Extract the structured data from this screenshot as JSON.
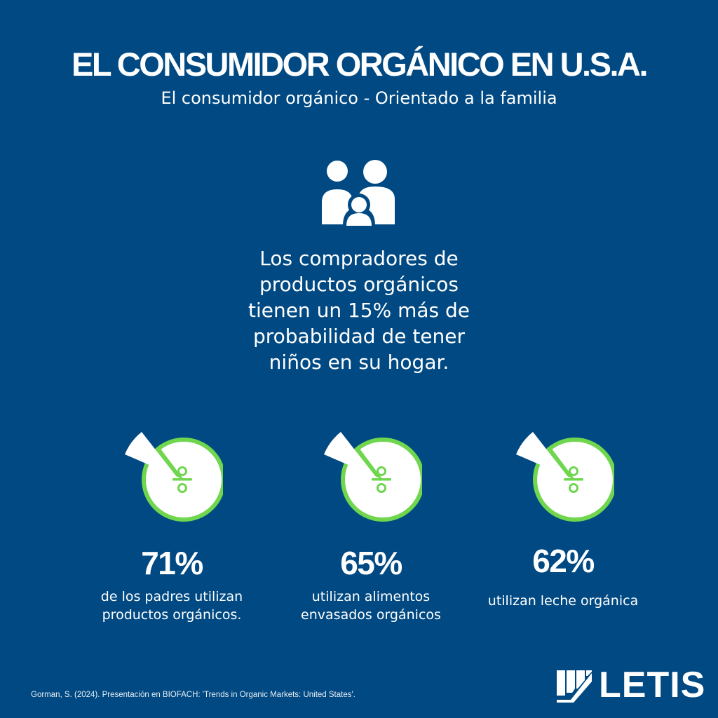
{
  "header": {
    "title": "EL CONSUMIDOR ORGÁNICO EN U.S.A.",
    "subtitle": "El consumidor orgánico - Orientado a la familia"
  },
  "main": {
    "icon": "family-icon",
    "statement_lines": [
      "Los compradores de",
      "productos orgánicos",
      "tienen un 15% más de",
      "probabilidad de tener",
      "niños en su hogar."
    ]
  },
  "stats": [
    {
      "icon": "percentage-pie-icon",
      "value": "71%",
      "description_lines": [
        "de los padres utilizan",
        "productos orgánicos."
      ]
    },
    {
      "icon": "percentage-pie-icon",
      "value": "65%",
      "description_lines": [
        "utilizan alimentos",
        "envasados orgánicos"
      ]
    },
    {
      "icon": "percentage-pie-icon",
      "value": "62%",
      "description_lines": [
        "utilizan leche orgánica"
      ]
    }
  ],
  "footer": {
    "source": "Gorman, S. (2024). Presentación en BIOFACH: 'Trends in Organic Markets: United States'.",
    "logo_text": "LETIS",
    "logo_icon": "letis-logo-icon"
  },
  "colors": {
    "background": "#004982",
    "accent_green": "#6fd64e",
    "text": "#ffffff"
  }
}
